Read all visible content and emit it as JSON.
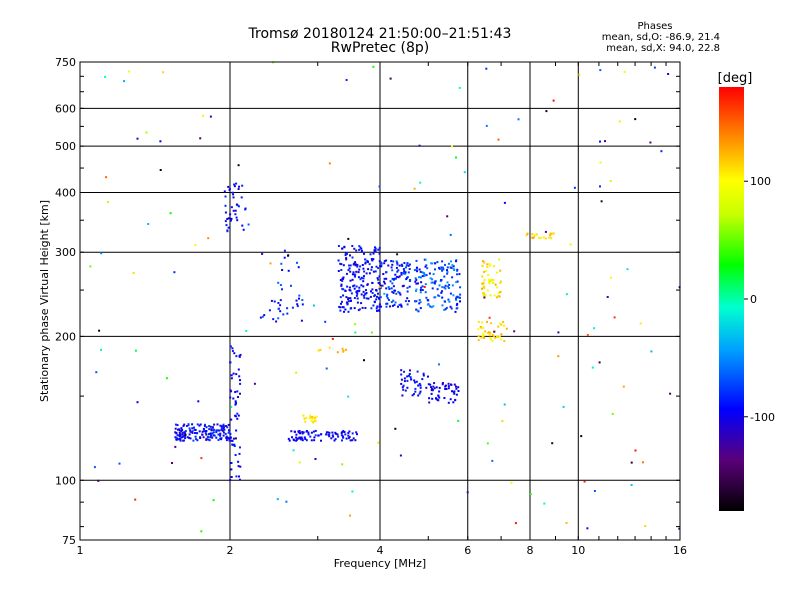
{
  "header": {
    "title_line1": "Tromsø 20180124 21:50:00–21:51:43",
    "title_line2": "RwPretec (8p)"
  },
  "stats": {
    "heading": "Phases",
    "line1": "mean, sd,O: -86.9, 21.4",
    "line2": "mean, sd,X:  94.0, 22.8"
  },
  "colorbar": {
    "label": "[deg]",
    "ticks": [
      {
        "label": "100",
        "value": 100
      },
      {
        "label": "0",
        "value": 0
      },
      {
        "label": "-100",
        "value": -100
      }
    ],
    "range": [
      -180,
      180
    ]
  },
  "chart_data": {
    "type": "scatter",
    "xlabel": "Frequency [MHz]",
    "ylabel": "Stationary phase Virtual Height [km]",
    "xscale": "log",
    "yscale": "log",
    "xlim": [
      1,
      16
    ],
    "ylim": [
      75,
      750
    ],
    "xticks": [
      1,
      2,
      4,
      6,
      8,
      10,
      16
    ],
    "xtick_labels": [
      "1",
      "2",
      "4",
      "6",
      "8",
      "10",
      "16"
    ],
    "yticks": [
      75,
      100,
      200,
      300,
      400,
      500,
      600,
      750
    ],
    "ytick_labels": [
      "75",
      "100",
      "200",
      "300",
      "400",
      "500",
      "600",
      "750"
    ],
    "grid": true,
    "clusters": [
      {
        "x": [
          1.55,
          2.0
        ],
        "y": [
          121,
          131
        ],
        "n": 160,
        "phase": [
          -115,
          -70
        ]
      },
      {
        "x": [
          2.0,
          2.1
        ],
        "y": [
          100,
          195
        ],
        "n": 60,
        "phase": [
          -110,
          -80
        ]
      },
      {
        "x": [
          2.6,
          3.6
        ],
        "y": [
          121,
          127
        ],
        "n": 90,
        "phase": [
          -110,
          -80
        ]
      },
      {
        "x": [
          2.8,
          3.0
        ],
        "y": [
          131,
          137
        ],
        "n": 20,
        "phase": [
          100,
          120
        ]
      },
      {
        "x": [
          1.95,
          2.15
        ],
        "y": [
          330,
          420
        ],
        "n": 40,
        "phase": [
          -110,
          -80
        ]
      },
      {
        "x": [
          2.3,
          2.8
        ],
        "y": [
          210,
          310
        ],
        "n": 40,
        "phase": [
          -110,
          -60
        ]
      },
      {
        "x": [
          3.3,
          4.0
        ],
        "y": [
          225,
          310
        ],
        "n": 200,
        "phase": [
          -110,
          -75
        ]
      },
      {
        "x": [
          4.0,
          4.6
        ],
        "y": [
          230,
          290
        ],
        "n": 110,
        "phase": [
          -110,
          -60
        ]
      },
      {
        "x": [
          4.7,
          5.8
        ],
        "y": [
          225,
          290
        ],
        "n": 150,
        "phase": [
          -100,
          -40
        ]
      },
      {
        "x": [
          4.4,
          5.0
        ],
        "y": [
          150,
          170
        ],
        "n": 40,
        "phase": [
          -110,
          -80
        ]
      },
      {
        "x": [
          5.0,
          5.8
        ],
        "y": [
          145,
          160
        ],
        "n": 50,
        "phase": [
          -110,
          -90
        ]
      },
      {
        "x": [
          6.3,
          7.2
        ],
        "y": [
          195,
          215
        ],
        "n": 40,
        "phase": [
          90,
          130
        ]
      },
      {
        "x": [
          6.4,
          7.0
        ],
        "y": [
          240,
          290
        ],
        "n": 50,
        "phase": [
          80,
          130
        ]
      },
      {
        "x": [
          7.8,
          9.0
        ],
        "y": [
          320,
          330
        ],
        "n": 20,
        "phase": [
          100,
          130
        ]
      },
      {
        "x": [
          3.0,
          3.5
        ],
        "y": [
          185,
          190
        ],
        "n": 8,
        "phase": [
          110,
          130
        ]
      },
      {
        "x": [
          1.0,
          16.0
        ],
        "y": [
          75,
          750
        ],
        "n": 160,
        "phase": [
          -180,
          180
        ]
      }
    ]
  }
}
